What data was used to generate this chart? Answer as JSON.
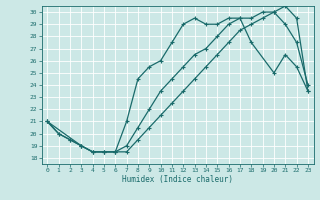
{
  "xlabel": "Humidex (Indice chaleur)",
  "bg_color": "#cce8e6",
  "line_color": "#1a6b6b",
  "grid_color": "#ffffff",
  "xlim": [
    -0.5,
    23.5
  ],
  "ylim": [
    17.5,
    30.5
  ],
  "xticks": [
    0,
    1,
    2,
    3,
    4,
    5,
    6,
    7,
    8,
    9,
    10,
    11,
    12,
    13,
    14,
    15,
    16,
    17,
    18,
    19,
    20,
    21,
    22,
    23
  ],
  "yticks": [
    18,
    19,
    20,
    21,
    22,
    23,
    24,
    25,
    26,
    27,
    28,
    29,
    30
  ],
  "line1_x": [
    0,
    1,
    2,
    3,
    4,
    5,
    6,
    7,
    8,
    9,
    10,
    11,
    12,
    13,
    14,
    15,
    16,
    17,
    18,
    19,
    20,
    21,
    22,
    23
  ],
  "line1_y": [
    21.0,
    20.0,
    19.5,
    19.0,
    18.5,
    18.5,
    18.5,
    19.0,
    20.5,
    22.0,
    23.5,
    24.5,
    25.5,
    26.5,
    27.0,
    28.0,
    29.0,
    29.5,
    29.5,
    30.0,
    30.0,
    29.0,
    27.5,
    24.0
  ],
  "line2_x": [
    0,
    1,
    2,
    3,
    4,
    5,
    6,
    7,
    8,
    9,
    10,
    11,
    12,
    13,
    14,
    15,
    16,
    17,
    18,
    19,
    20,
    21,
    22,
    23
  ],
  "line2_y": [
    21.0,
    20.0,
    19.5,
    19.0,
    18.5,
    18.5,
    18.5,
    18.5,
    19.5,
    20.5,
    21.5,
    22.5,
    23.5,
    24.5,
    25.5,
    26.5,
    27.5,
    28.5,
    29.0,
    29.5,
    30.0,
    30.5,
    29.5,
    23.5
  ],
  "line3_x": [
    0,
    3,
    4,
    5,
    6,
    7,
    8,
    9,
    10,
    11,
    12,
    13,
    14,
    15,
    16,
    17,
    18,
    20,
    21,
    22,
    23
  ],
  "line3_y": [
    21.0,
    19.0,
    18.5,
    18.5,
    18.5,
    21.0,
    24.5,
    25.5,
    26.0,
    27.5,
    29.0,
    29.5,
    29.0,
    29.0,
    29.5,
    29.5,
    27.5,
    25.0,
    26.5,
    25.5,
    23.5
  ],
  "markersize": 3,
  "linewidth": 0.9
}
